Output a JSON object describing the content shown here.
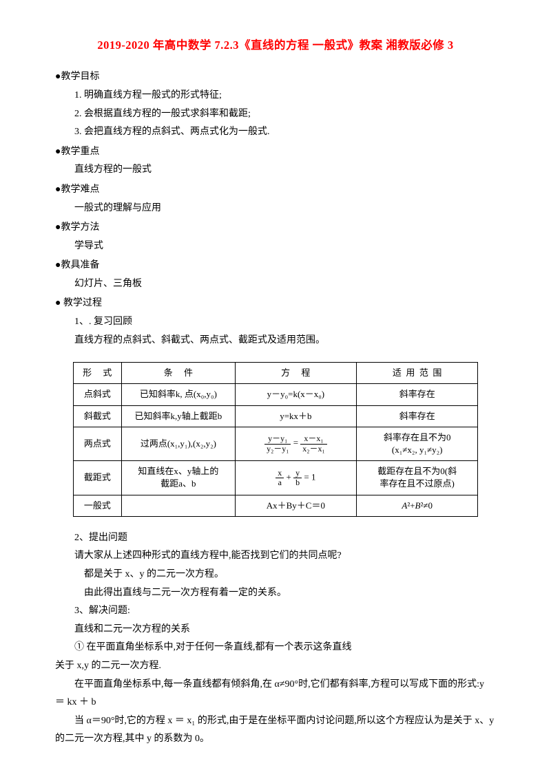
{
  "title": "2019-2020 年高中数学 7.2.3《直线的方程 一般式》教案 湘教版必修 3",
  "sections": {
    "goal_head": "●教学目标",
    "goal_1": "1. 明确直线方程一般式的形式特征;",
    "goal_2": "2. 会根据直线方程的一般式求斜率和截距;",
    "goal_3": "3. 会把直线方程的点斜式、两点式化为一般式.",
    "focus_head": "●教学重点",
    "focus_body": "直线方程的一般式",
    "diff_head": "●教学难点",
    "diff_body": "一般式的理解与应用",
    "method_head": "●教学方法",
    "method_body": "学导式",
    "tool_head": "●教具准备",
    "tool_body": "幻灯片、三角板",
    "proc_head": "●  教学过程",
    "proc_1": "1、. 复习回顾",
    "proc_1_body": "直线方程的点斜式、斜截式、两点式、截距式及适用范围。"
  },
  "table": {
    "headers": {
      "c1": "形 式",
      "c2": "条  件",
      "c3": "方  程",
      "c4": "适用范围"
    },
    "rows": [
      {
        "c1": "点斜式",
        "c2": "已知斜率k, 点(x₀,y₀)",
        "c3": "y－y₀=k(x－x₀)",
        "c4": "斜率存在"
      },
      {
        "c1": "斜截式",
        "c2": "已知斜率k,y轴上截距b",
        "c3": "y=kx＋b",
        "c4": "斜率存在"
      },
      {
        "c1": "两点式",
        "c2": "过两点(x₁,y₁),(x₂,y₂)",
        "c3_frac1_num": "y－y₁",
        "c3_frac1_den": "y₂－y₁",
        "c3_eq": " = ",
        "c3_frac2_num": "x－x₁",
        "c3_frac2_den": "x₂－x₁",
        "c4_l1": "斜率存在且不为0",
        "c4_l2": "(x₁≠x₂,  y₁≠y₂)"
      },
      {
        "c1": "截距式",
        "c2_l1": "知直线在x、y轴上的",
        "c2_l2": "截距a、b",
        "c3_frac1_num": "x",
        "c3_frac1_den": "a",
        "c3_mid": " + ",
        "c3_frac2_num": "y",
        "c3_frac2_den": "b",
        "c3_tail": " = 1",
        "c4_l1": "截距存在且不为0(斜",
        "c4_l2": "率存在且不过原点)"
      },
      {
        "c1": "一般式",
        "c2": "",
        "c3": "Ax＋By＋C＝0",
        "c4": "A²+B²≠0"
      }
    ]
  },
  "after": {
    "p2_head": "2、提出问题",
    "p2_q": "请大家从上述四种形式的直线方程中,能否找到它们的共同点呢?",
    "p2_a1": "都是关于 x、y 的二元一次方程。",
    "p2_a2": "由此得出直线与二元一次方程有着一定的关系。",
    "p3_head": "3、解决问题:",
    "p3_sub": "直线和二元一次方程的关系",
    "p3_1a": "① 在平面直角坐标系中,对于任何一条直线,都有一个表示这条直线",
    "p3_1b": "关于 x,y 的二元一次方程.",
    "p3_body1": "在平面直角坐标系中,每一条直线都有倾斜角,在 α≠90°时,它们都有斜率,方程可以写成下面的形式:y ＝ kx ＋ b",
    "p3_body2": "当 α＝90°时,它的方程 x ＝ x₁ 的形式,由于是在坐标平面内讨论问题,所以这个方程应认为是关于 x、y 的二元一次方程,其中 y 的系数为 0。"
  }
}
